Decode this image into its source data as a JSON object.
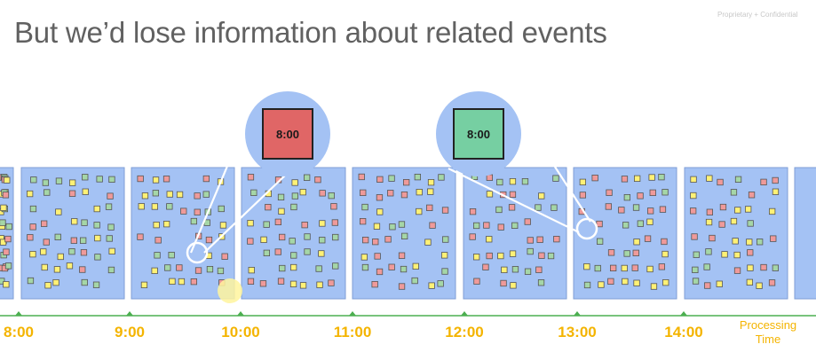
{
  "slide": {
    "title": "But we’d lose information about related events",
    "confidential": "Proprietary + Confidential"
  },
  "timeline": {
    "ticks": [
      "8:00",
      "9:00",
      "10:00",
      "11:00",
      "12:00",
      "13:00",
      "14:00"
    ],
    "axis_title_line1": "Processing",
    "axis_title_line2": "Time"
  },
  "callouts": [
    {
      "label": "8:00",
      "color": "#e06666"
    },
    {
      "label": "8:00",
      "color": "#76cfa2"
    }
  ],
  "colors": {
    "window_fill": "#a4c2f4",
    "bubble_fill": "#a4c2f4",
    "event_red": "#ef9a9a",
    "event_yellow": "#fff176",
    "event_green": "#a5d6a7",
    "axis_line": "#4caf50",
    "time_label": "#f4b400",
    "cursor_highlight": "#fff59d"
  }
}
